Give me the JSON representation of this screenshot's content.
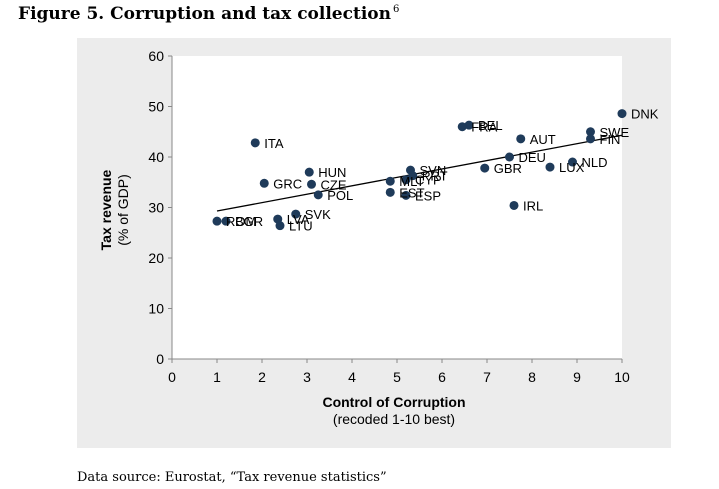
{
  "figure": {
    "title": "Figure 5. Corruption and tax collection",
    "footnote_marker": "6",
    "source": "Data source: Eurostat, “Tax revenue statistics”"
  },
  "chart_data": {
    "type": "scatter",
    "title": "",
    "xlabel": "Control of Corruption",
    "xlabel_sub": "(recoded 1-10 best)",
    "ylabel": "Tax revenue",
    "ylabel_sub": "(% of GDP)",
    "xlim": [
      0,
      10
    ],
    "ylim": [
      0,
      60
    ],
    "xticks": [
      0,
      1,
      2,
      3,
      4,
      5,
      6,
      7,
      8,
      9,
      10
    ],
    "yticks": [
      0,
      10,
      20,
      30,
      40,
      50,
      60
    ],
    "grid": false,
    "legend": "none",
    "marker_color": "#1f3b5a",
    "trendline": {
      "x": [
        1.0,
        10.0
      ],
      "y": [
        29.3,
        44.3
      ],
      "color": "#000000"
    },
    "points": [
      {
        "label": "DNK",
        "x": 10.0,
        "y": 48.6
      },
      {
        "label": "SWE",
        "x": 9.3,
        "y": 45.0
      },
      {
        "label": "FIN",
        "x": 9.3,
        "y": 43.6
      },
      {
        "label": "NLD",
        "x": 8.9,
        "y": 39.0
      },
      {
        "label": "LUX",
        "x": 8.4,
        "y": 38.0
      },
      {
        "label": "DEU",
        "x": 7.5,
        "y": 40.0
      },
      {
        "label": "AUT",
        "x": 7.75,
        "y": 43.6
      },
      {
        "label": "GBR",
        "x": 6.95,
        "y": 37.8
      },
      {
        "label": "IRL",
        "x": 7.6,
        "y": 30.4
      },
      {
        "label": "BEL",
        "x": 6.6,
        "y": 46.3
      },
      {
        "label": "FRA",
        "x": 6.45,
        "y": 46.0
      },
      {
        "label": "SVN",
        "x": 5.3,
        "y": 37.4
      },
      {
        "label": "PRT",
        "x": 5.35,
        "y": 36.3
      },
      {
        "label": "CYP",
        "x": 5.2,
        "y": 35.5
      },
      {
        "label": "MLT",
        "x": 4.85,
        "y": 35.2
      },
      {
        "label": "EST",
        "x": 4.85,
        "y": 33.0
      },
      {
        "label": "ESP",
        "x": 5.2,
        "y": 32.4
      },
      {
        "label": "ITA",
        "x": 1.85,
        "y": 42.8
      },
      {
        "label": "HUN",
        "x": 3.05,
        "y": 37.0
      },
      {
        "label": "GRC",
        "x": 2.05,
        "y": 34.8
      },
      {
        "label": "CZE",
        "x": 3.1,
        "y": 34.6
      },
      {
        "label": "POL",
        "x": 3.25,
        "y": 32.5
      },
      {
        "label": "SVK",
        "x": 2.75,
        "y": 28.7
      },
      {
        "label": "LVA",
        "x": 2.35,
        "y": 27.7
      },
      {
        "label": "LTU",
        "x": 2.4,
        "y": 26.4
      },
      {
        "label": "ROM",
        "x": 1.0,
        "y": 27.3
      },
      {
        "label": "BGR",
        "x": 1.2,
        "y": 27.3
      }
    ]
  }
}
